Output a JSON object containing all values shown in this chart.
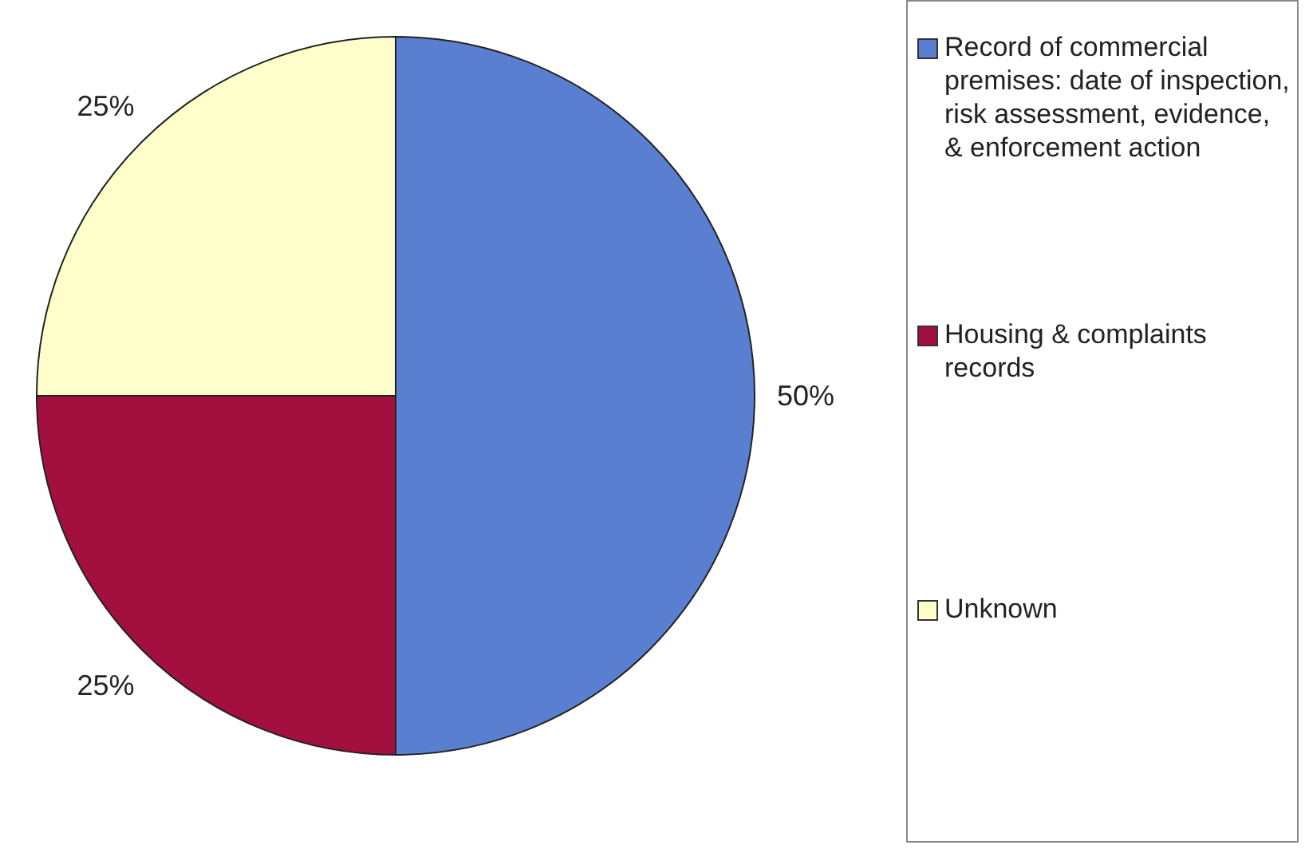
{
  "chart_data": {
    "type": "pie",
    "categories": [
      "Record of commercial premises: date of inspection, risk assessment, evidence, & enforcement action",
      "Housing & complaints records",
      "Unknown"
    ],
    "values": [
      50,
      25,
      25
    ],
    "colors": [
      "#5a7fd0",
      "#a3103f",
      "#ffffcc"
    ],
    "value_labels": [
      "50%",
      "25%",
      "25%"
    ],
    "legend": "right"
  }
}
